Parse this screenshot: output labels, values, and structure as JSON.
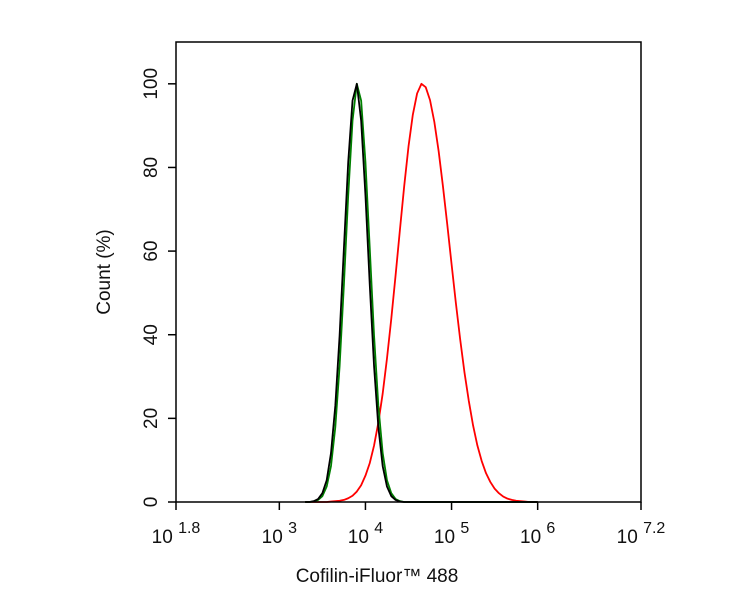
{
  "chart_data": {
    "type": "line",
    "x_label": "Cofilin-iFluor™ 488",
    "y_label": "Count  (%)",
    "x_log": true,
    "xlim": [
      63.0957,
      15848931.9
    ],
    "xticks": [
      {
        "value": 63.0957,
        "label": "10^1.8"
      },
      {
        "value": 1000,
        "label": "10^3"
      },
      {
        "value": 10000,
        "label": "10^4"
      },
      {
        "value": 100000,
        "label": "10^5"
      },
      {
        "value": 1000000,
        "label": "10^6"
      },
      {
        "value": 15848931.9,
        "label": "10^7.2"
      }
    ],
    "ylim": [
      0,
      110
    ],
    "yticks": [
      0,
      20,
      40,
      60,
      80,
      100
    ],
    "x": [
      1995,
      2239,
      2512,
      2818,
      3162,
      3548,
      3981,
      4467,
      5012,
      5623,
      6310,
      7079,
      7943,
      8913,
      10000,
      11220,
      12589,
      14125,
      15849,
      17783,
      19953,
      22387,
      25119,
      28184,
      31623,
      35481,
      39811,
      44668,
      50119,
      56234,
      63096,
      70795,
      79433,
      89125,
      100000,
      112202,
      125893,
      141254,
      158489,
      177828,
      199526,
      223872,
      251189,
      281838,
      316228,
      354813,
      398107,
      446684,
      501187,
      562341,
      630957,
      707946,
      794328,
      891251,
      1000000
    ],
    "series": [
      {
        "color": "#ff0000",
        "values": [
          0,
          0,
          0,
          0,
          0,
          0,
          0.1,
          0.2,
          0.3,
          0.5,
          0.9,
          1.5,
          2.5,
          4,
          6.3,
          9.3,
          13.5,
          19,
          25.9,
          34.3,
          43.8,
          54.2,
          65,
          75.5,
          85,
          92.6,
          97.7,
          100,
          99.2,
          96.1,
          90.9,
          83.9,
          75.5,
          66.4,
          56.9,
          47.6,
          38.9,
          31,
          24.2,
          18.3,
          13.5,
          9.8,
          6.9,
          4.8,
          3.2,
          2.1,
          1.3,
          0.8,
          0.5,
          0.3,
          0.2,
          0.1,
          0,
          0,
          0
        ]
      },
      {
        "color": "#008000",
        "values": [
          0,
          0,
          0.1,
          0.5,
          1.4,
          3.7,
          8.6,
          17.9,
          32.5,
          52,
          73.4,
          91.2,
          100,
          96,
          81.3,
          60.7,
          39.8,
          23,
          11.7,
          5.2,
          2.1,
          0.7,
          0.2,
          0,
          0,
          0,
          0,
          0,
          0,
          0,
          0,
          0,
          0,
          0,
          0,
          0,
          0,
          0,
          0,
          0,
          0,
          0,
          0,
          0,
          0,
          0,
          0,
          0,
          0,
          0,
          0,
          0,
          0,
          0,
          0
        ]
      },
      {
        "color": "#000000",
        "values": [
          0,
          0,
          0.2,
          0.7,
          2.1,
          5.2,
          11.7,
          23,
          39.8,
          60.7,
          81.3,
          96,
          100,
          91.2,
          73.4,
          52,
          32.5,
          17.9,
          8.6,
          3.7,
          1.4,
          0.5,
          0.1,
          0,
          0,
          0,
          0,
          0,
          0,
          0,
          0,
          0,
          0,
          0,
          0,
          0,
          0,
          0,
          0,
          0,
          0,
          0,
          0,
          0,
          0,
          0,
          0,
          0,
          0,
          0,
          0,
          0,
          0,
          0,
          0
        ]
      }
    ]
  }
}
